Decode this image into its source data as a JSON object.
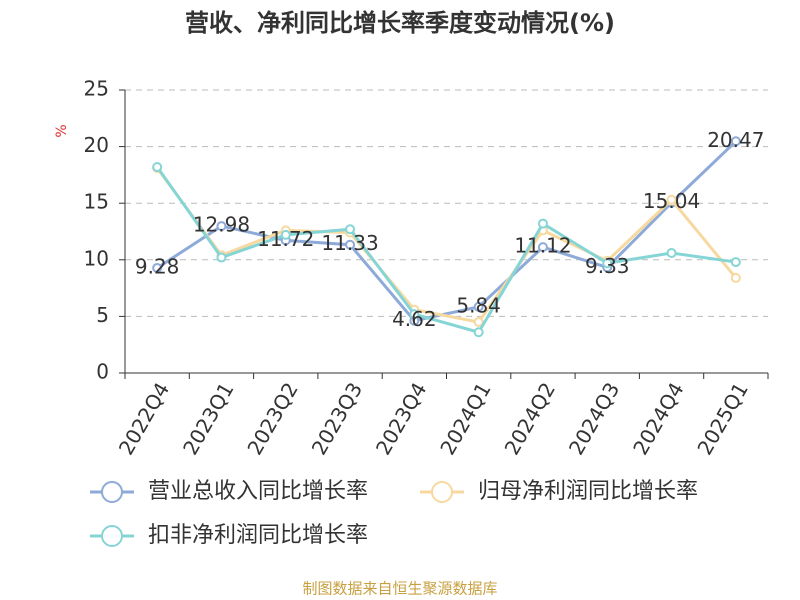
{
  "chart_data": {
    "type": "line",
    "title": "营收、净利同比增长率季度变动情况(%)",
    "y_unit": "%",
    "source": "制图数据来自恒生聚源数据库",
    "categories": [
      "2022Q4",
      "2023Q1",
      "2023Q2",
      "2023Q3",
      "2023Q4",
      "2024Q1",
      "2024Q2",
      "2024Q3",
      "2024Q4",
      "2025Q1"
    ],
    "series": [
      {
        "name": "营业总收入同比增长率",
        "color": "#8eaad8",
        "values": [
          9.28,
          12.98,
          11.72,
          11.33,
          4.62,
          5.84,
          11.12,
          9.33,
          15.04,
          20.47
        ],
        "show_labels": true
      },
      {
        "name": "归母净利润同比增长率",
        "color": "#f7d9a0",
        "values": [
          18.1,
          10.4,
          12.6,
          12.4,
          5.6,
          4.5,
          12.6,
          9.9,
          15.3,
          8.4
        ],
        "show_labels": false
      },
      {
        "name": "扣非净利润同比增长率",
        "color": "#86d5d6",
        "values": [
          18.2,
          10.2,
          12.2,
          12.7,
          5.2,
          3.6,
          13.2,
          9.7,
          10.6,
          9.8
        ],
        "show_labels": false
      }
    ],
    "ylim": [
      0,
      25
    ],
    "yticks": [
      0,
      5,
      10,
      15,
      20,
      25
    ],
    "grid": true
  }
}
